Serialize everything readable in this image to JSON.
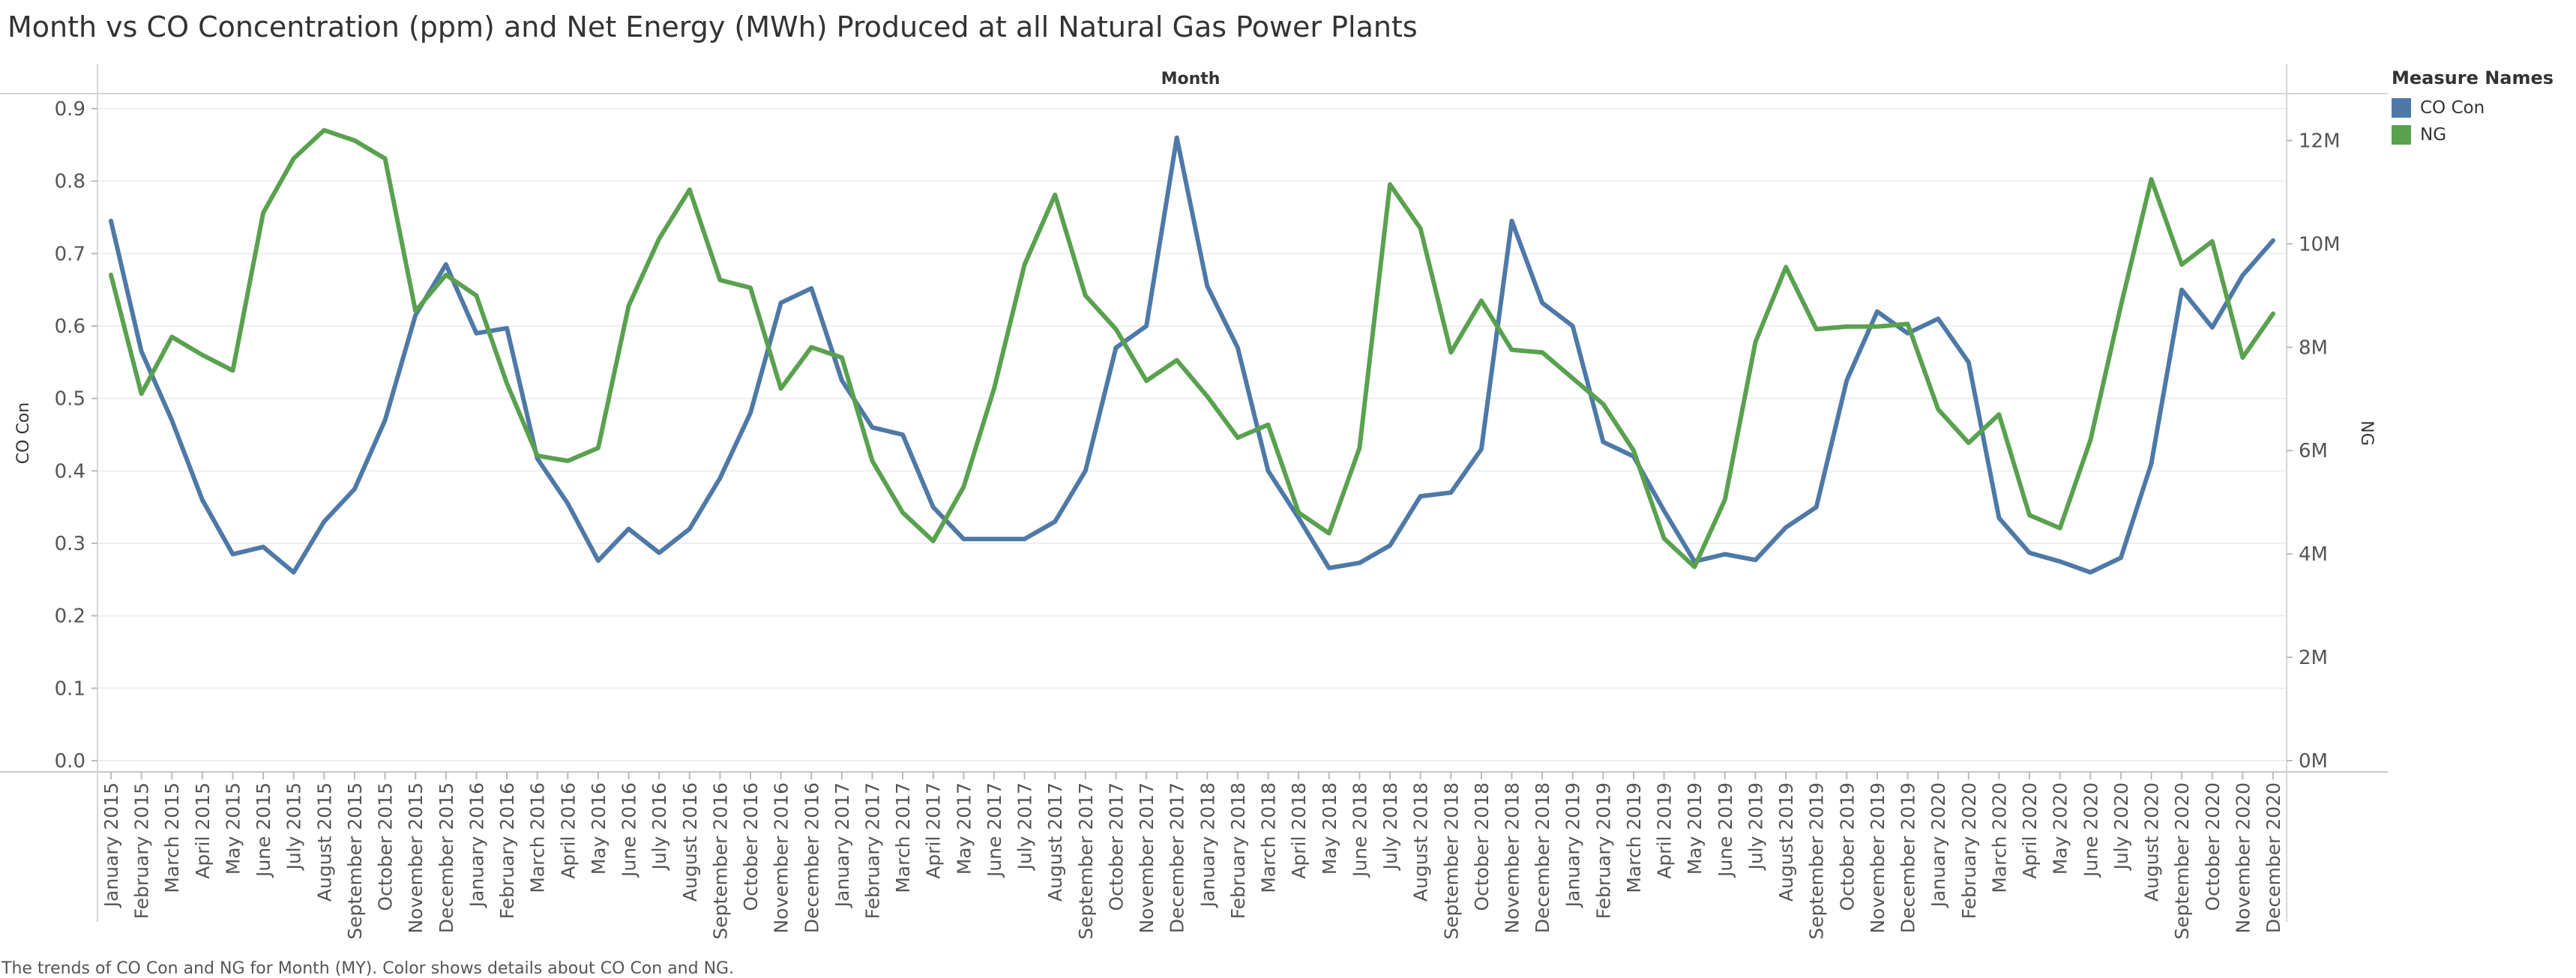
{
  "chart_data": {
    "type": "line",
    "title": "Month vs CO Concentration (ppm) and Net Energy (MWh) Produced at all Natural Gas Power Plants",
    "header_label": "Month",
    "ylabel_left": "CO Con",
    "ylabel_right": "NG",
    "caption": "The trends of CO Con and NG for Month (MY).  Color shows details about CO Con and NG.",
    "legend": {
      "title": "Measure Names",
      "placement": "right"
    },
    "y_left": {
      "min": 0,
      "max": 0.9,
      "ticks": [
        0.0,
        0.1,
        0.2,
        0.3,
        0.4,
        0.5,
        0.6,
        0.7,
        0.8,
        0.9
      ],
      "tick_labels": [
        "0.0",
        "0.1",
        "0.2",
        "0.3",
        "0.4",
        "0.5",
        "0.6",
        "0.7",
        "0.8",
        "0.9"
      ]
    },
    "y_right": {
      "min": 0,
      "max": 12500000,
      "ticks": [
        0,
        2000000,
        4000000,
        6000000,
        8000000,
        10000000,
        12000000
      ],
      "tick_labels": [
        "0M",
        "2M",
        "4M",
        "6M",
        "8M",
        "10M",
        "12M"
      ]
    },
    "grid": true,
    "categories": [
      "January 2015",
      "February 2015",
      "March 2015",
      "April 2015",
      "May 2015",
      "June 2015",
      "July 2015",
      "August 2015",
      "September 2015",
      "October 2015",
      "November 2015",
      "December 2015",
      "January 2016",
      "February 2016",
      "March 2016",
      "April 2016",
      "May 2016",
      "June 2016",
      "July 2016",
      "August 2016",
      "September 2016",
      "October 2016",
      "November 2016",
      "December 2016",
      "January 2017",
      "February 2017",
      "March 2017",
      "April 2017",
      "May 2017",
      "June 2017",
      "July 2017",
      "August 2017",
      "September 2017",
      "October 2017",
      "November 2017",
      "December 2017",
      "January 2018",
      "February 2018",
      "March 2018",
      "April 2018",
      "May 2018",
      "June 2018",
      "July 2018",
      "August 2018",
      "September 2018",
      "October 2018",
      "November 2018",
      "December 2018",
      "January 2019",
      "February 2019",
      "March 2019",
      "April 2019",
      "May 2019",
      "June 2019",
      "July 2019",
      "August 2019",
      "September 2019",
      "October 2019",
      "November 2019",
      "December 2019",
      "January 2020",
      "February 2020",
      "March 2020",
      "April 2020",
      "May 2020",
      "June 2020",
      "July 2020",
      "August 2020",
      "September 2020",
      "October 2020",
      "November 2020",
      "December 2020"
    ],
    "series": [
      {
        "name": "CO Con",
        "axis": "left",
        "color": "#4e79a7",
        "values": [
          0.745,
          0.565,
          0.47,
          0.36,
          0.285,
          0.295,
          0.26,
          0.33,
          0.375,
          0.47,
          0.615,
          0.685,
          0.59,
          0.597,
          0.417,
          0.355,
          0.276,
          0.32,
          0.287,
          0.32,
          0.39,
          0.48,
          0.632,
          0.652,
          0.525,
          0.46,
          0.45,
          0.35,
          0.306,
          0.306,
          0.306,
          0.33,
          0.4,
          0.57,
          0.6,
          0.86,
          0.655,
          0.57,
          0.4,
          0.335,
          0.266,
          0.273,
          0.297,
          0.365,
          0.37,
          0.43,
          0.745,
          0.632,
          0.6,
          0.44,
          0.42,
          0.345,
          0.275,
          0.285,
          0.277,
          0.322,
          0.35,
          0.525,
          0.62,
          0.59,
          0.61,
          0.55,
          0.335,
          0.287,
          0.275,
          0.26,
          0.28,
          0.41,
          0.65,
          0.598,
          0.67,
          0.718
        ]
      },
      {
        "name": "NG",
        "axis": "right",
        "color": "#59a14f",
        "values": [
          9400000,
          7100000,
          8200000,
          7850000,
          7550000,
          10600000,
          11650000,
          12200000,
          12000000,
          11650000,
          8700000,
          9400000,
          9000000,
          7300000,
          5900000,
          5800000,
          6050000,
          8800000,
          10100000,
          11050000,
          9300000,
          9150000,
          7200000,
          8000000,
          7800000,
          5800000,
          4800000,
          4250000,
          5300000,
          7200000,
          9600000,
          10950000,
          9000000,
          8350000,
          7350000,
          7750000,
          7050000,
          6250000,
          6500000,
          4800000,
          4400000,
          6050000,
          11150000,
          10300000,
          7900000,
          8900000,
          7950000,
          7900000,
          7400000,
          6900000,
          6000000,
          4300000,
          3750000,
          5050000,
          8100000,
          9550000,
          8350000,
          8400000,
          8400000,
          8450000,
          6800000,
          6150000,
          6700000,
          4750000,
          4500000,
          6200000,
          8800000,
          11250000,
          9600000,
          10050000,
          7800000,
          8650000
        ]
      }
    ]
  }
}
